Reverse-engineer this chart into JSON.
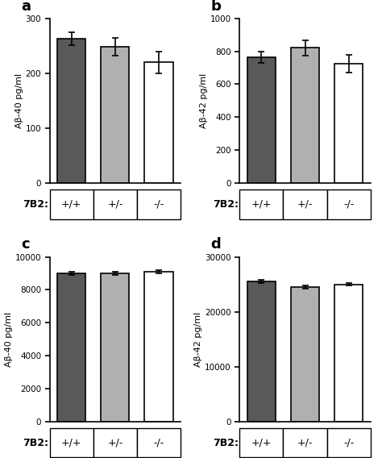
{
  "panels": [
    {
      "label": "a",
      "ylabel": "Aβ-40 pg/ml",
      "ylim": [
        0,
        300
      ],
      "yticks": [
        0,
        100,
        200,
        300
      ],
      "values": [
        263,
        248,
        220
      ],
      "errors": [
        12,
        16,
        20
      ],
      "colors": [
        "#595959",
        "#b0b0b0",
        "#ffffff"
      ]
    },
    {
      "label": "b",
      "ylabel": "Aβ-42 pg/ml",
      "ylim": [
        0,
        1000
      ],
      "yticks": [
        0,
        200,
        400,
        600,
        800,
        1000
      ],
      "values": [
        765,
        820,
        725
      ],
      "errors": [
        35,
        45,
        55
      ],
      "colors": [
        "#595959",
        "#b0b0b0",
        "#ffffff"
      ]
    },
    {
      "label": "c",
      "ylabel": "Aβ-40 pg/ml",
      "ylim": [
        0,
        10000
      ],
      "yticks": [
        0,
        2000,
        4000,
        6000,
        8000,
        10000
      ],
      "values": [
        9000,
        9000,
        9100
      ],
      "errors": [
        100,
        80,
        90
      ],
      "colors": [
        "#595959",
        "#b0b0b0",
        "#ffffff"
      ]
    },
    {
      "label": "d",
      "ylabel": "Aβ-42 pg/ml",
      "ylim": [
        0,
        30000
      ],
      "yticks": [
        0,
        10000,
        20000,
        30000
      ],
      "values": [
        25500,
        24500,
        25000
      ],
      "errors": [
        300,
        350,
        280
      ],
      "colors": [
        "#595959",
        "#b0b0b0",
        "#ffffff"
      ]
    }
  ],
  "xticklabels": [
    "+/+",
    "+/-",
    "-/-"
  ],
  "xlabel_prefix": "7B2:",
  "bar_width": 0.65,
  "edge_color": "#000000",
  "background_color": "#ffffff"
}
